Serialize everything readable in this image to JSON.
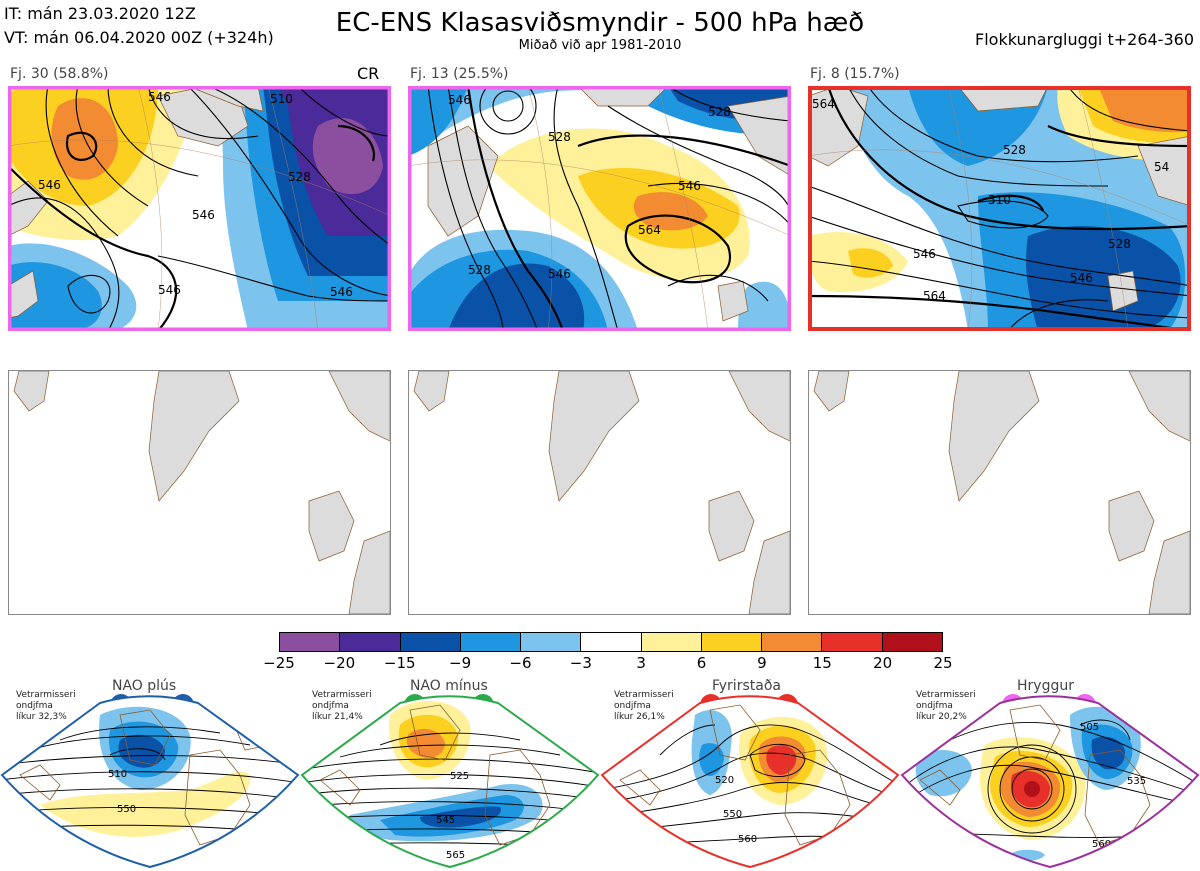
{
  "header": {
    "it": "IT: mán 23.03.2020 12Z",
    "vt": "VT: mán 06.04.2020 00Z  (+324h)",
    "title": "EC-ENS Klasasviðsmyndir - 500 hPa hæð",
    "subtitle": "Miðað við apr 1981-2010",
    "window": "Flokkunargluggi t+264-360"
  },
  "colors": {
    "land": "#dcdcdc",
    "coast": "#8b5a2b",
    "contour": "#000000",
    "nao_plus": "#1f5fa8",
    "nao_minus": "#2aaa4a",
    "blocking": "#e8302a",
    "ridge": "#ee66ee",
    "frame_pink": "#ee66ee",
    "frame_red": "#e8302a"
  },
  "clusters": [
    {
      "label": "Fj. 30 (58.8%)",
      "tag": "CR",
      "frame_color": "#ee66ee",
      "contours": [
        "546",
        "510",
        "528",
        "546",
        "546",
        "546",
        "546"
      ]
    },
    {
      "label": "Fj. 13 (25.5%)",
      "tag": "",
      "frame_color": "#ee66ee",
      "contours": [
        "546",
        "528",
        "546",
        "564",
        "528",
        "528",
        "546"
      ]
    },
    {
      "label": "Fj. 8 (15.7%)",
      "tag": "",
      "frame_color": "#e8302a",
      "contours": [
        "564",
        "528",
        "510",
        "546",
        "564",
        "528",
        "546",
        "54"
      ]
    }
  ],
  "colorbar": {
    "ticks": [
      "−25",
      "−20",
      "−15",
      "−9",
      "−6",
      "−3",
      "3",
      "6",
      "9",
      "15",
      "20",
      "25"
    ],
    "colors": [
      "#8c4fa0",
      "#4b2a9a",
      "#0a52a8",
      "#1f96e0",
      "#7cc3ee",
      "#ffffff",
      "#fff09a",
      "#fcd020",
      "#f28b32",
      "#e8302a",
      "#b0101a"
    ]
  },
  "regimes": [
    {
      "name": "NAO plús",
      "info": [
        "Vetrarmisseri",
        "ondjfma",
        "líkur 32,3%"
      ],
      "dot_color": "#1f5fa8",
      "frame_color": "#1f5fa8",
      "contours": [
        "510",
        "550"
      ]
    },
    {
      "name": "NAO mínus",
      "info": [
        "Vetrarmisseri",
        "ondjfma",
        "líkur 21,4%"
      ],
      "dot_color": "#2aaa4a",
      "frame_color": "#2aaa4a",
      "contours": [
        "525",
        "545",
        "565"
      ]
    },
    {
      "name": "Fyrirstaða",
      "info": [
        "Vetrarmisseri",
        "ondjfma",
        "líkur 26,1%"
      ],
      "dot_color": "#e8302a",
      "frame_color": "#e8302a",
      "contours": [
        "520",
        "550",
        "560"
      ]
    },
    {
      "name": "Hryggur",
      "info": [
        "Vetrarmisseri",
        "ondjfma",
        "líkur 20,2%"
      ],
      "dot_color": "#ee66ee",
      "frame_color": "#9b2f9b",
      "contours": [
        "505",
        "535",
        "560"
      ]
    }
  ]
}
